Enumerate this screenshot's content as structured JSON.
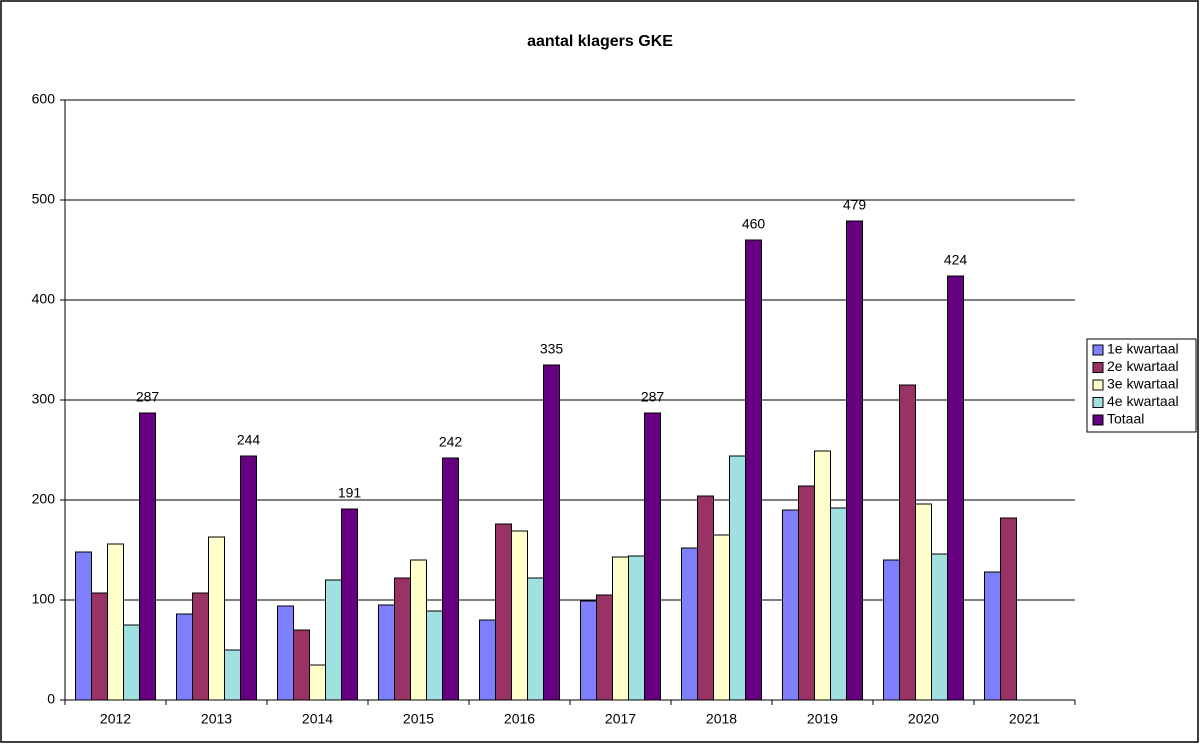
{
  "chart_data": {
    "type": "bar",
    "title": "aantal klagers GKE",
    "categories": [
      "2012",
      "2013",
      "2014",
      "2015",
      "2016",
      "2017",
      "2018",
      "2019",
      "2020",
      "2021"
    ],
    "series": [
      {
        "name": "1e kwartaal",
        "color": "#8080ff",
        "values": [
          148,
          86,
          94,
          95,
          80,
          99,
          152,
          190,
          140,
          128
        ]
      },
      {
        "name": "2e kwartaal",
        "color": "#993366",
        "values": [
          107,
          107,
          70,
          122,
          176,
          105,
          204,
          214,
          315,
          182
        ]
      },
      {
        "name": "3e kwartaal",
        "color": "#ffffcc",
        "values": [
          156,
          163,
          35,
          140,
          169,
          143,
          165,
          249,
          196,
          null
        ]
      },
      {
        "name": "4e kwartaal",
        "color": "#a0e0e0",
        "values": [
          75,
          50,
          120,
          89,
          122,
          144,
          244,
          192,
          146,
          null
        ]
      },
      {
        "name": "Totaal",
        "color": "#660080",
        "values": [
          287,
          244,
          191,
          242,
          335,
          287,
          460,
          479,
          424,
          null
        ],
        "data_labels": true
      }
    ],
    "ylim": [
      0,
      600
    ],
    "yticks": [
      0,
      100,
      200,
      300,
      400,
      500,
      600
    ],
    "grid": true,
    "legend": "right"
  }
}
